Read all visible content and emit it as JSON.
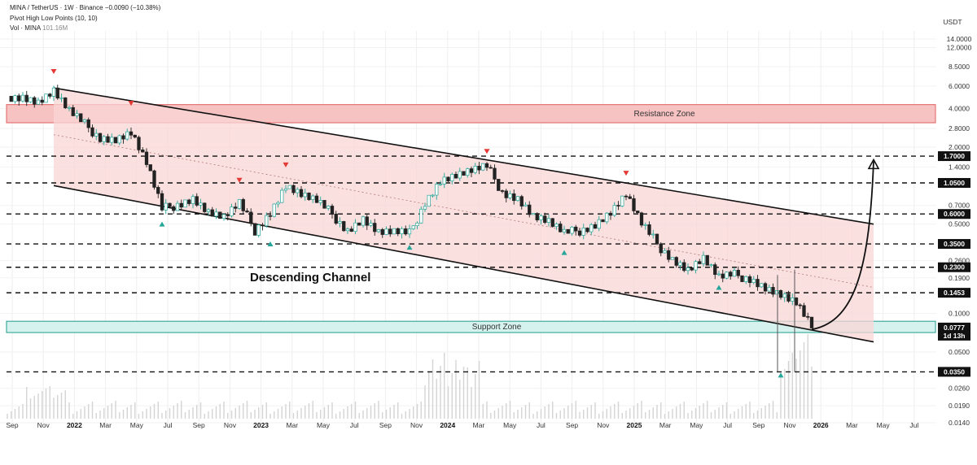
{
  "header": {
    "symbol_line": "MINA / TetherUS · 1W · Binance",
    "change": "−0.0090 (−10.38%)",
    "indicator": "Pivot High Low Points (10, 10)",
    "volume_label": "Vol · MINA",
    "volume_value": "101.16M"
  },
  "chart_data": {
    "type": "candlestick",
    "y_scale": "log",
    "currency_label": "USDT",
    "y_ticks": [
      "14.0000",
      "12.0000",
      "8.5000",
      "6.0000",
      "4.0000",
      "2.8000",
      "2.0000",
      "1.4000",
      "0.7000",
      "0.5000",
      "0.2600",
      "0.1900",
      "0.1000",
      "0.0500",
      "0.0260",
      "0.0190",
      "0.0140"
    ],
    "y_tick_values": [
      14.0,
      12.0,
      8.5,
      6.0,
      4.0,
      2.8,
      2.0,
      1.4,
      0.7,
      0.5,
      0.26,
      0.19,
      0.1,
      0.05,
      0.026,
      0.019,
      0.014
    ],
    "x_ticks": [
      "Sep",
      "Nov",
      "2022",
      "Mar",
      "May",
      "Jul",
      "Sep",
      "Nov",
      "2023",
      "Mar",
      "May",
      "Jul",
      "Sep",
      "Nov",
      "2024",
      "Mar",
      "May",
      "Jul",
      "Sep",
      "Nov",
      "2025",
      "Mar",
      "May",
      "Jul",
      "Sep",
      "Nov",
      "2026",
      "Mar",
      "May",
      "Jul"
    ],
    "x_ticks_bold": [
      "2022",
      "2023",
      "2024",
      "2025",
      "2026"
    ],
    "price_levels": [
      {
        "label": "1.7000",
        "value": 1.7
      },
      {
        "label": "1.0500",
        "value": 1.05
      },
      {
        "label": "0.6000",
        "value": 0.6
      },
      {
        "label": "0.3500",
        "value": 0.35
      },
      {
        "label": "0.2300",
        "value": 0.23
      },
      {
        "label": "0.1453",
        "value": 0.1453
      },
      {
        "label": "0.0350",
        "value": 0.035
      }
    ],
    "current_price": {
      "label": "0.0777",
      "countdown": "1d 13h",
      "value": 0.0777
    },
    "zones": {
      "resistance": {
        "label": "Resistance Zone",
        "low": 3.1,
        "high": 4.3
      },
      "support": {
        "label": "Support Zone",
        "low": 0.071,
        "high": 0.087
      }
    },
    "annotation": "Descending Channel",
    "channel": {
      "upper": [
        [
          "2021-11",
          5.8
        ],
        [
          "2026-04",
          0.5
        ]
      ],
      "lower": [
        [
          "2021-11",
          1.0
        ],
        [
          "2026-04",
          0.06
        ]
      ],
      "midline": [
        [
          "2021-11",
          2.5
        ],
        [
          "2026-04",
          0.16
        ]
      ]
    },
    "pivot_highs": [
      [
        "2021-11",
        7.8
      ],
      [
        "2022-04",
        4.4
      ],
      [
        "2022-11",
        1.1
      ],
      [
        "2023-02",
        1.45
      ],
      [
        "2024-03",
        1.85
      ],
      [
        "2024-12",
        1.25
      ]
    ],
    "pivot_lows": [
      [
        "2022-06",
        0.5
      ],
      [
        "2023-01",
        0.35
      ],
      [
        "2023-10",
        0.33
      ],
      [
        "2024-08",
        0.3
      ],
      [
        "2025-06",
        0.16
      ],
      [
        "2025-10",
        0.033
      ]
    ],
    "projection_arrow": {
      "from": [
        "2025-12",
        0.075
      ],
      "to": [
        "2026-04",
        1.55
      ]
    },
    "price_series": [
      [
        "2021-08",
        5.0
      ],
      [
        "2021-09",
        5.0
      ],
      [
        "2021-10",
        4.5
      ],
      [
        "2021-11",
        5.5
      ],
      [
        "2021-12",
        3.8
      ],
      [
        "2022-01",
        3.0
      ],
      [
        "2022-02",
        2.4
      ],
      [
        "2022-03",
        2.3
      ],
      [
        "2022-04",
        2.6
      ],
      [
        "2022-05",
        1.5
      ],
      [
        "2022-06",
        0.65
      ],
      [
        "2022-07",
        0.72
      ],
      [
        "2022-08",
        0.8
      ],
      [
        "2022-09",
        0.62
      ],
      [
        "2022-10",
        0.56
      ],
      [
        "2022-11",
        0.72
      ],
      [
        "2022-12",
        0.45
      ],
      [
        "2023-01",
        0.62
      ],
      [
        "2023-02",
        1.0
      ],
      [
        "2023-03",
        0.85
      ],
      [
        "2023-04",
        0.75
      ],
      [
        "2023-05",
        0.6
      ],
      [
        "2023-06",
        0.45
      ],
      [
        "2023-07",
        0.55
      ],
      [
        "2023-08",
        0.43
      ],
      [
        "2023-09",
        0.43
      ],
      [
        "2023-10",
        0.42
      ],
      [
        "2023-11",
        0.75
      ],
      [
        "2023-12",
        1.1
      ],
      [
        "2024-01",
        1.2
      ],
      [
        "2024-02",
        1.3
      ],
      [
        "2024-03",
        1.4
      ],
      [
        "2024-04",
        0.9
      ],
      [
        "2024-05",
        0.8
      ],
      [
        "2024-06",
        0.58
      ],
      [
        "2024-07",
        0.52
      ],
      [
        "2024-08",
        0.42
      ],
      [
        "2024-09",
        0.45
      ],
      [
        "2024-10",
        0.5
      ],
      [
        "2024-11",
        0.62
      ],
      [
        "2024-12",
        0.85
      ],
      [
        "2025-01",
        0.5
      ],
      [
        "2025-02",
        0.35
      ],
      [
        "2025-03",
        0.27
      ],
      [
        "2025-04",
        0.22
      ],
      [
        "2025-05",
        0.27
      ],
      [
        "2025-06",
        0.19
      ],
      [
        "2025-07",
        0.2
      ],
      [
        "2025-08",
        0.19
      ],
      [
        "2025-09",
        0.16
      ],
      [
        "2025-10",
        0.14
      ],
      [
        "2025-11",
        0.12
      ],
      [
        "2025-12",
        0.0777
      ]
    ]
  },
  "colors": {
    "up": "#26a69a",
    "down": "#222222",
    "channel_fill": "#f9d6d6",
    "resistance_fill": "#f6c2c2",
    "resistance_stroke": "#e06060",
    "support_fill": "#d6f2ee",
    "support_stroke": "#1f9c8c",
    "pivot_high": "#e53935",
    "pivot_low": "#26a69a",
    "label_bg": "#111111"
  }
}
